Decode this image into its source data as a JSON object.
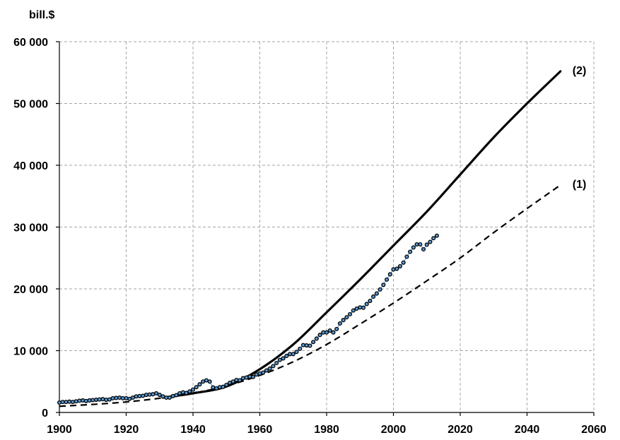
{
  "chart_data": {
    "type": "line",
    "ylabel": "bill.$",
    "xlim": [
      1900,
      2060
    ],
    "ylim": [
      0,
      60000
    ],
    "x_ticks": [
      1900,
      1920,
      1940,
      1960,
      1980,
      2000,
      2020,
      2040,
      2060
    ],
    "x_tick_labels": [
      "1900",
      "1920",
      "1940",
      "1960",
      "1980",
      "2000",
      "2020",
      "2040",
      "2060"
    ],
    "y_ticks": [
      0,
      10000,
      20000,
      30000,
      40000,
      50000,
      60000
    ],
    "y_tick_labels": [
      "0",
      "10 000",
      "20 000",
      "30 000",
      "40 000",
      "50 000",
      "60 000"
    ],
    "grid": true,
    "series": [
      {
        "label": "(1)",
        "style": "dashed",
        "color": "#000000",
        "x": [
          1900,
          1910,
          1920,
          1930,
          1940,
          1950,
          1960,
          1970,
          1980,
          1990,
          2000,
          2010,
          2020,
          2030,
          2040,
          2050
        ],
        "y": [
          1000,
          1300,
          1700,
          2300,
          3100,
          4300,
          6000,
          8200,
          11000,
          14300,
          17700,
          21300,
          25000,
          29100,
          33000,
          36800
        ]
      },
      {
        "label": "(2)",
        "style": "solid",
        "color": "#000000",
        "x": [
          1931,
          1940,
          1950,
          1960,
          1970,
          1980,
          1990,
          2000,
          2010,
          2020,
          2030,
          2040,
          2050
        ],
        "y": [
          2400,
          3100,
          4200,
          7000,
          11000,
          16200,
          21500,
          27000,
          32500,
          38500,
          44500,
          50000,
          55200
        ]
      },
      {
        "label": "",
        "style": "markers",
        "color": "#000000",
        "marker_fill": "#5b9bd5",
        "x": [
          1900,
          1901,
          1902,
          1903,
          1904,
          1905,
          1906,
          1907,
          1908,
          1909,
          1910,
          1911,
          1912,
          1913,
          1914,
          1915,
          1916,
          1917,
          1918,
          1919,
          1920,
          1921,
          1922,
          1923,
          1924,
          1925,
          1926,
          1927,
          1928,
          1929,
          1930,
          1931,
          1932,
          1933,
          1934,
          1935,
          1936,
          1937,
          1938,
          1939,
          1940,
          1941,
          1942,
          1943,
          1944,
          1945,
          1946,
          1947,
          1948,
          1949,
          1950,
          1951,
          1952,
          1953,
          1954,
          1955,
          1956,
          1957,
          1958,
          1959,
          1960,
          1961,
          1962,
          1963,
          1964,
          1965,
          1966,
          1967,
          1968,
          1969,
          1970,
          1971,
          1972,
          1973,
          1974,
          1975,
          1976,
          1977,
          1978,
          1979,
          1980,
          1981,
          1982,
          1983,
          1984,
          1985,
          1986,
          1987,
          1988,
          1989,
          1990,
          1991,
          1992,
          1993,
          1994,
          1995,
          1996,
          1997,
          1998,
          1999,
          2000,
          2001,
          2002,
          2003,
          2004,
          2005,
          2006,
          2007,
          2008,
          2009,
          2010,
          2011,
          2012,
          2013
        ],
        "y": [
          1600,
          1700,
          1700,
          1750,
          1700,
          1800,
          1900,
          1950,
          1850,
          1950,
          2000,
          2050,
          2100,
          2150,
          2050,
          2100,
          2300,
          2350,
          2400,
          2300,
          2300,
          2200,
          2400,
          2600,
          2650,
          2700,
          2850,
          2900,
          2950,
          3100,
          2850,
          2600,
          2400,
          2400,
          2650,
          2800,
          3100,
          3250,
          3150,
          3400,
          3700,
          4100,
          4550,
          5000,
          5200,
          5000,
          4050,
          3900,
          4100,
          4150,
          4450,
          4800,
          5000,
          5250,
          5200,
          5550,
          5650,
          5800,
          5750,
          6150,
          6300,
          6450,
          6800,
          7100,
          7500,
          8000,
          8500,
          8750,
          9150,
          9450,
          9450,
          9800,
          10300,
          10900,
          10850,
          10800,
          11400,
          11950,
          12550,
          12950,
          12950,
          13250,
          12950,
          13500,
          14400,
          14950,
          15400,
          15900,
          16500,
          16800,
          17000,
          16950,
          17550,
          18050,
          18750,
          19250,
          19900,
          20650,
          21500,
          22350,
          23150,
          23250,
          23650,
          24250,
          25200,
          26000,
          26700,
          27200,
          27200,
          26400,
          27150,
          27600,
          28200,
          28600
        ]
      }
    ]
  }
}
